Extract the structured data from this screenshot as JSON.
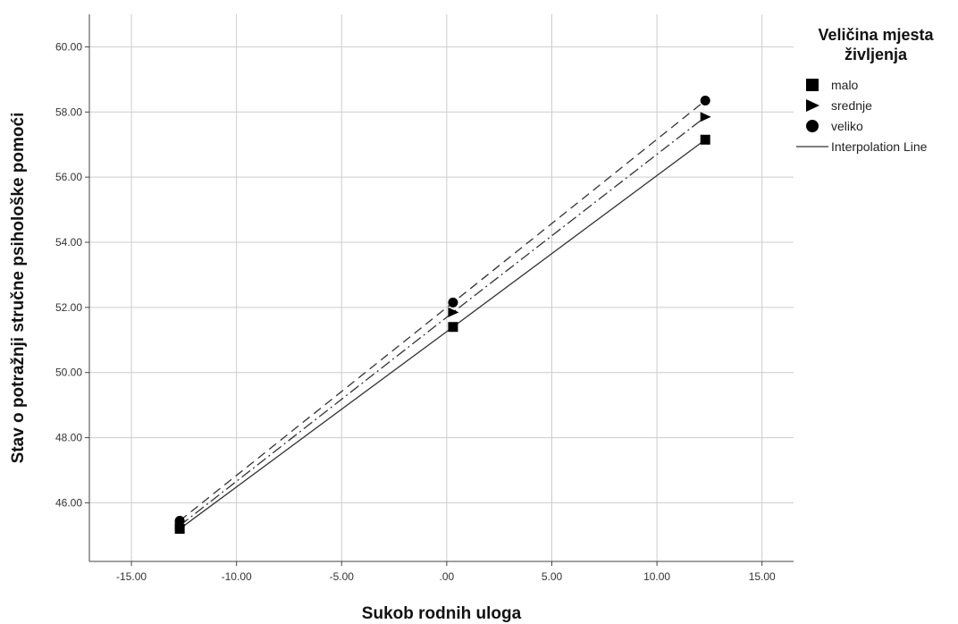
{
  "chart_data": {
    "type": "line",
    "xlabel": "Sukob rodnih uloga",
    "ylabel": "Stav o potražnji stručne psihološke pomoći",
    "xlim": [
      -17.0,
      16.5
    ],
    "ylim": [
      44.2,
      61.0
    ],
    "x_ticks": [
      {
        "value": -15,
        "label": "-15.00"
      },
      {
        "value": -10,
        "label": "-10.00"
      },
      {
        "value": -5,
        "label": "-5.00"
      },
      {
        "value": 0,
        "label": ".00"
      },
      {
        "value": 5,
        "label": "5.00"
      },
      {
        "value": 10,
        "label": "10.00"
      },
      {
        "value": 15,
        "label": "15.00"
      }
    ],
    "y_ticks": [
      {
        "value": 46,
        "label": "46.00"
      },
      {
        "value": 48,
        "label": "48.00"
      },
      {
        "value": 50,
        "label": "50.00"
      },
      {
        "value": 52,
        "label": "52.00"
      },
      {
        "value": 54,
        "label": "54.00"
      },
      {
        "value": 56,
        "label": "56.00"
      },
      {
        "value": 58,
        "label": "58.00"
      },
      {
        "value": 60,
        "label": "60.00"
      }
    ],
    "grid": true,
    "legend_placement": "right",
    "legend_title": "Veličina mjesta življenja",
    "legend_title_lines": [
      "Veličina mjesta",
      "življenja"
    ],
    "interpolation_label": "Interpolation Line",
    "series": [
      {
        "name": "malo",
        "marker": "square",
        "line_style": "solid",
        "x": [
          -12.7,
          0.3,
          12.3
        ],
        "y": [
          45.2,
          51.4,
          57.15
        ]
      },
      {
        "name": "srednje",
        "marker": "triangle-right",
        "line_style": "dash-dot",
        "x": [
          -12.7,
          0.3,
          12.3
        ],
        "y": [
          45.3,
          51.85,
          57.85
        ]
      },
      {
        "name": "veliko",
        "marker": "circle",
        "line_style": "dashed",
        "x": [
          -12.7,
          0.3,
          12.3
        ],
        "y": [
          45.45,
          52.15,
          58.35
        ]
      }
    ],
    "colors": {
      "marks": "#000000",
      "line": "#333333",
      "grid": "#cccccc",
      "axis": "#444444"
    }
  }
}
